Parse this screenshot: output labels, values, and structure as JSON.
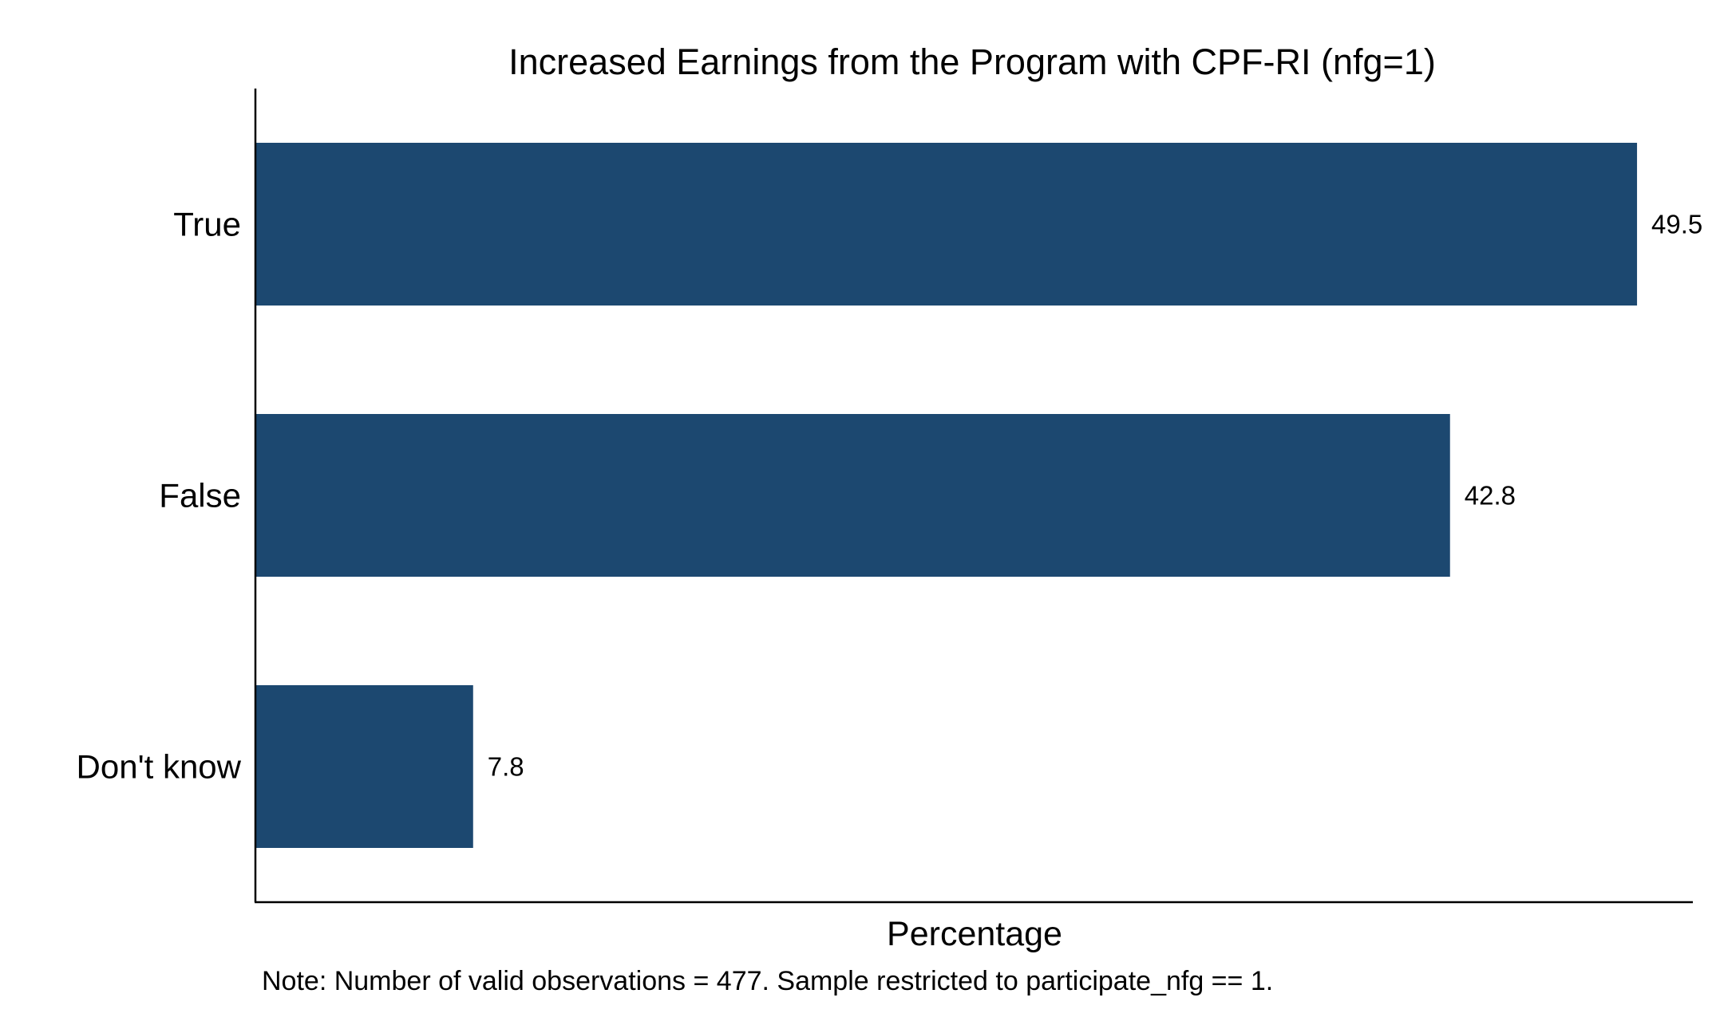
{
  "chart_data": {
    "type": "bar",
    "orientation": "horizontal",
    "title": "Increased Earnings from the Program with CPF-RI (nfg=1)",
    "xlabel": "Percentage",
    "ylabel": "",
    "categories": [
      "True",
      "False",
      "Don't know"
    ],
    "values": [
      49.5,
      42.8,
      7.8
    ],
    "value_labels": [
      "49.5",
      "42.8",
      "7.8"
    ],
    "xlim": [
      0,
      51.5
    ],
    "grid": false,
    "legend": "none",
    "bar_color": "#1c4870",
    "note": "Note: Number of valid observations = 477. Sample restricted to participate_nfg == 1."
  }
}
